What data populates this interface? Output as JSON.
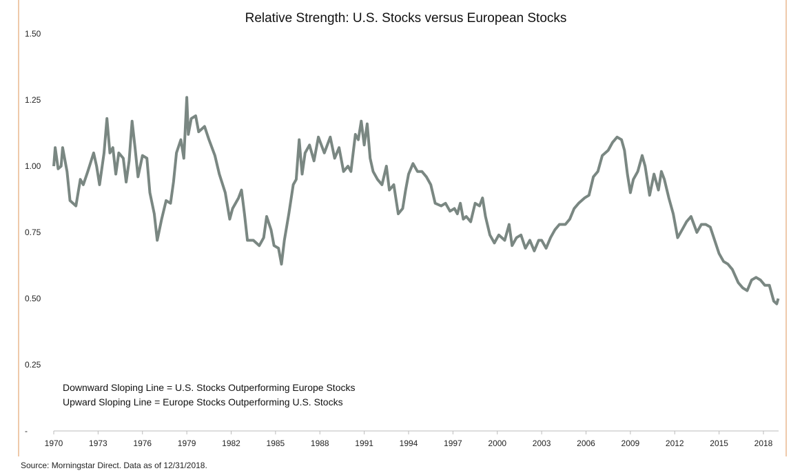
{
  "chart_data": {
    "type": "line",
    "title": "Relative Strength: U.S. Stocks versus European Stocks",
    "xlabel": "",
    "ylabel": "",
    "ylim": [
      0,
      1.5
    ],
    "xlim": [
      1970,
      2019
    ],
    "y_ticks": [
      "-",
      "0.25",
      "0.50",
      "0.75",
      "1.00",
      "1.25",
      "1.50"
    ],
    "x_ticks": [
      "1970",
      "1973",
      "1976",
      "1979",
      "1982",
      "1985",
      "1988",
      "1991",
      "1994",
      "1997",
      "2000",
      "2003",
      "2006",
      "2009",
      "2012",
      "2015",
      "2018"
    ],
    "grid": false,
    "line_color": "#7a8782",
    "annotations": [
      "Downward Sloping Line = U.S. Stocks Outperforming Europe Stocks",
      "Upward Sloping Line = Europe Stocks Outperforming U.S. Stocks"
    ],
    "source": "Source: Morningstar Direct. Data as of 12/31/2018.",
    "series": [
      {
        "x": [
          1970.0,
          1970.1,
          1970.3,
          1970.5,
          1970.6,
          1970.9,
          1971.1,
          1971.5,
          1971.8,
          1972.0,
          1972.3,
          1972.7,
          1972.9,
          1973.1,
          1973.4,
          1973.6,
          1973.8,
          1974.0,
          1974.2,
          1974.4,
          1974.7,
          1974.9,
          1975.1,
          1975.3,
          1975.5,
          1975.7,
          1976.0,
          1976.3,
          1976.5,
          1976.8,
          1977.0,
          1977.3,
          1977.6,
          1977.9,
          1978.1,
          1978.3,
          1978.6,
          1978.8,
          1979.0,
          1979.1,
          1979.3,
          1979.6,
          1979.8,
          1980.2,
          1980.5,
          1980.9,
          1981.2,
          1981.6,
          1981.9,
          1982.1,
          1982.5,
          1982.7,
          1982.9,
          1983.1,
          1983.5,
          1983.9,
          1984.2,
          1984.4,
          1984.7,
          1984.9,
          1985.2,
          1985.4,
          1985.6,
          1985.9,
          1986.2,
          1986.4,
          1986.6,
          1986.8,
          1987.0,
          1987.3,
          1987.6,
          1987.9,
          1988.3,
          1988.7,
          1989.0,
          1989.3,
          1989.6,
          1989.9,
          1990.1,
          1990.4,
          1990.6,
          1990.8,
          1991.0,
          1991.2,
          1991.4,
          1991.6,
          1991.9,
          1992.2,
          1992.5,
          1992.7,
          1993.0,
          1993.3,
          1993.6,
          1993.8,
          1994.0,
          1994.3,
          1994.6,
          1994.9,
          1995.2,
          1995.5,
          1995.8,
          1996.2,
          1996.5,
          1996.8,
          1997.1,
          1997.3,
          1997.5,
          1997.7,
          1997.9,
          1998.2,
          1998.5,
          1998.8,
          1999.0,
          1999.2,
          1999.5,
          1999.8,
          2000.1,
          2000.5,
          2000.8,
          2001.0,
          2001.3,
          2001.6,
          2001.9,
          2002.2,
          2002.5,
          2002.8,
          2003.0,
          2003.3,
          2003.6,
          2003.9,
          2004.2,
          2004.6,
          2004.9,
          2005.2,
          2005.5,
          2005.9,
          2006.2,
          2006.5,
          2006.8,
          2007.1,
          2007.5,
          2007.8,
          2008.1,
          2008.4,
          2008.6,
          2008.8,
          2009.0,
          2009.2,
          2009.5,
          2009.8,
          2010.0,
          2010.3,
          2010.6,
          2010.9,
          2011.1,
          2011.3,
          2011.6,
          2011.9,
          2012.2,
          2012.5,
          2012.8,
          2013.1,
          2013.5,
          2013.8,
          2014.1,
          2014.4,
          2014.7,
          2015.0,
          2015.3,
          2015.6,
          2015.9,
          2016.3,
          2016.6,
          2016.9,
          2017.2,
          2017.5,
          2017.8,
          2018.1,
          2018.4,
          2018.7,
          2018.9,
          2019.0
        ],
        "values": [
          1.0,
          1.07,
          0.99,
          1.0,
          1.07,
          0.98,
          0.87,
          0.85,
          0.95,
          0.93,
          0.98,
          1.05,
          1.0,
          0.93,
          1.05,
          1.18,
          1.05,
          1.07,
          0.97,
          1.05,
          1.03,
          0.94,
          1.02,
          1.17,
          1.07,
          0.96,
          1.04,
          1.03,
          0.9,
          0.82,
          0.72,
          0.8,
          0.87,
          0.86,
          0.94,
          1.05,
          1.1,
          1.03,
          1.26,
          1.12,
          1.18,
          1.19,
          1.13,
          1.15,
          1.1,
          1.04,
          0.97,
          0.9,
          0.8,
          0.84,
          0.88,
          0.91,
          0.82,
          0.72,
          0.72,
          0.7,
          0.73,
          0.81,
          0.76,
          0.7,
          0.69,
          0.63,
          0.72,
          0.82,
          0.93,
          0.95,
          1.1,
          0.97,
          1.05,
          1.08,
          1.02,
          1.11,
          1.05,
          1.11,
          1.03,
          1.07,
          0.98,
          1.0,
          0.98,
          1.12,
          1.1,
          1.17,
          1.08,
          1.16,
          1.03,
          0.98,
          0.95,
          0.93,
          1.0,
          0.91,
          0.93,
          0.82,
          0.84,
          0.91,
          0.97,
          1.01,
          0.98,
          0.98,
          0.96,
          0.93,
          0.86,
          0.85,
          0.86,
          0.83,
          0.84,
          0.82,
          0.86,
          0.8,
          0.81,
          0.79,
          0.86,
          0.85,
          0.88,
          0.81,
          0.74,
          0.71,
          0.74,
          0.72,
          0.78,
          0.7,
          0.73,
          0.74,
          0.69,
          0.72,
          0.68,
          0.72,
          0.72,
          0.69,
          0.73,
          0.76,
          0.78,
          0.78,
          0.8,
          0.84,
          0.86,
          0.88,
          0.89,
          0.96,
          0.98,
          1.04,
          1.06,
          1.09,
          1.11,
          1.1,
          1.06,
          0.97,
          0.9,
          0.95,
          0.98,
          1.04,
          1.0,
          0.89,
          0.97,
          0.91,
          0.98,
          0.95,
          0.88,
          0.82,
          0.73,
          0.76,
          0.79,
          0.81,
          0.75,
          0.78,
          0.78,
          0.77,
          0.72,
          0.67,
          0.64,
          0.63,
          0.61,
          0.56,
          0.54,
          0.53,
          0.57,
          0.58,
          0.57,
          0.55,
          0.55,
          0.49,
          0.48,
          0.5
        ]
      }
    ]
  }
}
